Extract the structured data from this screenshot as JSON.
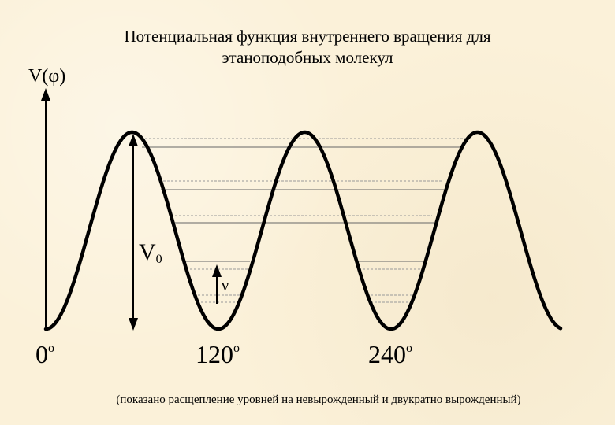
{
  "title": {
    "line1": "Потенциальная функция внутреннего вращения для",
    "line2": "этаноподобных молекул"
  },
  "axis": {
    "y_label_main": "V(",
    "y_label_phi": "φ",
    "y_label_close": ")"
  },
  "ticks": [
    {
      "value": "0",
      "degree": "o"
    },
    {
      "value": "120",
      "degree": "o"
    },
    {
      "value": "240",
      "degree": "o"
    }
  ],
  "barrier": {
    "label": "V",
    "subscript": "0"
  },
  "transition": {
    "label": "ν"
  },
  "footnote": "(показано расщепление уровней на невырожденный и двукратно вырожденный)",
  "colors": {
    "background": "#fbf1d9",
    "curve": "#000000",
    "levels_solid": "#555555",
    "levels_dashed": "#8a8a8a"
  }
}
